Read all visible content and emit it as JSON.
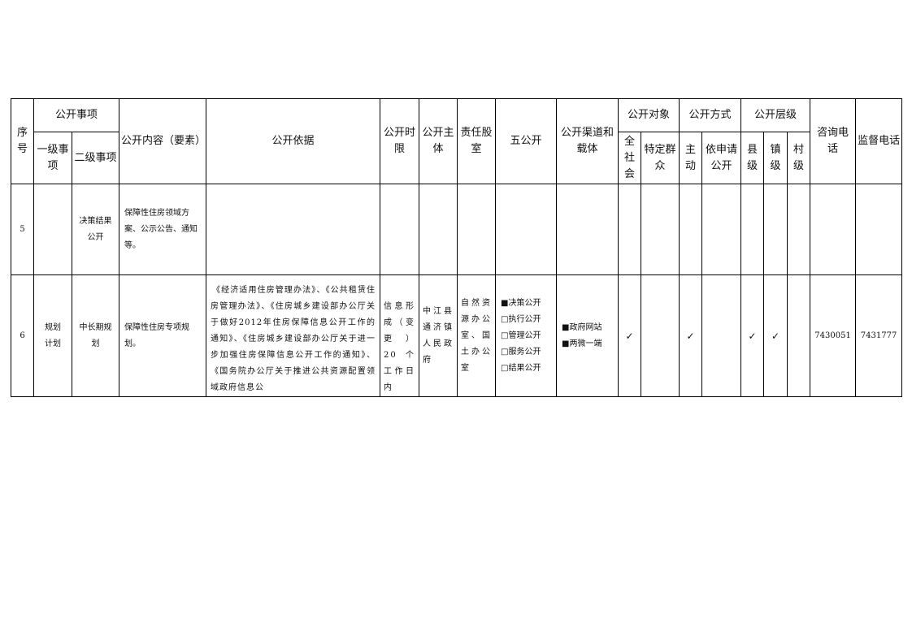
{
  "header": {
    "seq": "序号",
    "items": "公开事项",
    "level1": "一级事项",
    "level2": "二级事项",
    "content": "公开内容（要素）",
    "basis": "公开依据",
    "time_limit": "公开时限",
    "subject": "公开主体",
    "dept": "责任股室",
    "five_open": "五公开",
    "channel": "公开渠道和载体",
    "target": "公开对象",
    "target_all": "全社会",
    "target_specific": "特定群众",
    "method": "公开方式",
    "method_active": "主动",
    "method_apply": "依申请公开",
    "level": "公开层级",
    "level_county": "县级",
    "level_town": "镇级",
    "level_village": "村级",
    "consult_phone": "咨询电话",
    "supervise_phone": "监督电话"
  },
  "rows": [
    {
      "seq": "5",
      "level1": "",
      "level2": "决策结果公开",
      "content": "保障性住房领域方案、公示公告、通知等。"
    },
    {
      "seq": "6",
      "level1": "规划计划",
      "level2": "中长期规划",
      "content": "保障性住房专项规划。",
      "basis": "《经济适用住房管理办法》、《公共租赁住房管理办法》、《住房城乡建设部办公厅关于做好2012年住房保障信息公开工作的通知》、《住房城乡建设部办公厅关于进一步加强住房保障信息公开工作的通知》、《国务院办公厅关于推进公共资源配置领域政府信息公",
      "time_limit": "信息形成（变更）20个工作日内",
      "subject": "中江县通济镇人民政府",
      "dept": "自然资源办公室、国土办公室",
      "five_open": [
        "■决策公开",
        "□执行公开",
        "□管理公开",
        "□服务公开",
        "□结果公开"
      ],
      "channel": [
        "■政府网站",
        "■两微一端"
      ],
      "check_mark": "✓",
      "consult_phone": "7430051",
      "supervise_phone": "7431777"
    }
  ]
}
